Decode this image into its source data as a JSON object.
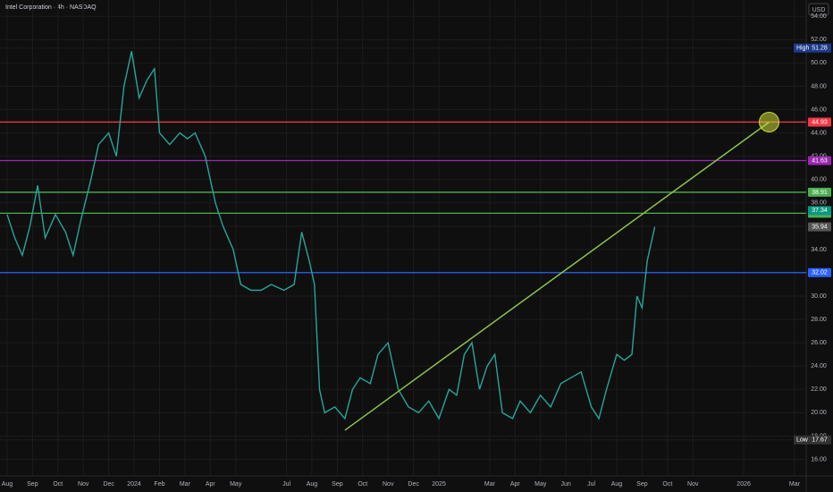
{
  "chart_data": {
    "type": "line",
    "title": "Intel Corporation · 4h · NASDAQ",
    "currency": "USD",
    "color": "#26a69a",
    "x": [
      0,
      0.3,
      0.6,
      0.9,
      1.2,
      1.5,
      1.9,
      2.3,
      2.6,
      2.9,
      3.3,
      3.6,
      4.0,
      4.3,
      4.6,
      4.9,
      5.2,
      5.5,
      5.8,
      6.0,
      6.4,
      6.8,
      7.1,
      7.4,
      7.8,
      8.2,
      8.5,
      8.9,
      9.2,
      9.6,
      10.0,
      10.4,
      10.9,
      11.3,
      11.6,
      11.9,
      12.1,
      12.3,
      12.5,
      12.9,
      13.3,
      13.6,
      13.9,
      14.3,
      14.6,
      15.0,
      15.4,
      15.8,
      16.2,
      16.6,
      17.0,
      17.4,
      17.7,
      18.0,
      18.3,
      18.6,
      18.9,
      19.2,
      19.5,
      19.9,
      20.2,
      20.6,
      21.0,
      21.4,
      21.8,
      22.2,
      22.6,
      23.0,
      23.3,
      23.6,
      24.0,
      24.3,
      24.6,
      24.8,
      25.0,
      25.2,
      25.5
    ],
    "values": [
      37,
      35,
      33.5,
      36,
      39.5,
      35,
      37,
      35.5,
      33.5,
      36.5,
      40,
      43,
      44,
      42,
      48,
      51,
      47,
      48.5,
      49.5,
      44,
      43,
      44,
      43.5,
      44,
      42,
      38,
      36,
      34,
      31,
      30.5,
      30.5,
      31,
      30.5,
      31,
      35.5,
      33,
      31,
      22,
      20,
      20.5,
      19.5,
      22,
      23,
      22.5,
      25,
      26,
      22,
      20.5,
      20,
      21,
      19.5,
      22,
      21.5,
      25,
      26,
      22,
      24,
      25,
      20,
      19.5,
      21,
      20,
      21.5,
      20.5,
      22.5,
      23,
      23.5,
      20.5,
      19.5,
      22,
      25,
      24.5,
      25,
      30,
      29,
      33,
      35.94
    ],
    "xlim": [
      -0.28,
      31.46
    ],
    "ylim": [
      13.2,
      55.4
    ],
    "xticks": [
      {
        "value": 0,
        "label": "Aug"
      },
      {
        "value": 1,
        "label": "Sep"
      },
      {
        "value": 2,
        "label": "Oct"
      },
      {
        "value": 3,
        "label": "Nov"
      },
      {
        "value": 4,
        "label": "Dec"
      },
      {
        "value": 5,
        "label": "2024"
      },
      {
        "value": 6,
        "label": "Feb"
      },
      {
        "value": 7,
        "label": "Mar"
      },
      {
        "value": 8,
        "label": "Apr"
      },
      {
        "value": 9,
        "label": "May"
      },
      {
        "value": 11,
        "label": "Jul"
      },
      {
        "value": 12,
        "label": "Aug"
      },
      {
        "value": 13,
        "label": "Sep"
      },
      {
        "value": 14,
        "label": "Oct"
      },
      {
        "value": 15,
        "label": "Nov"
      },
      {
        "value": 16,
        "label": "Dec"
      },
      {
        "value": 17,
        "label": "2025"
      },
      {
        "value": 19,
        "label": "Mar"
      },
      {
        "value": 20,
        "label": "Apr"
      },
      {
        "value": 21,
        "label": "May"
      },
      {
        "value": 22,
        "label": "Jun"
      },
      {
        "value": 23,
        "label": "Jul"
      },
      {
        "value": 24,
        "label": "Aug"
      },
      {
        "value": 25,
        "label": "Sep"
      },
      {
        "value": 26,
        "label": "Oct"
      },
      {
        "value": 27,
        "label": "Nov"
      },
      {
        "value": 29,
        "label": "2026"
      },
      {
        "value": 31,
        "label": "Mar"
      }
    ],
    "yticks": [
      {
        "value": 16,
        "label": "16.00"
      },
      {
        "value": 18,
        "label": "18.00"
      },
      {
        "value": 20,
        "label": "20.00"
      },
      {
        "value": 22,
        "label": "22.00"
      },
      {
        "value": 24,
        "label": "24.00"
      },
      {
        "value": 26,
        "label": "26.00"
      },
      {
        "value": 28,
        "label": "28.00"
      },
      {
        "value": 30,
        "label": "30.00"
      },
      {
        "value": 32,
        "label": "32.00"
      },
      {
        "value": 34,
        "label": "34.00"
      },
      {
        "value": 36,
        "label": "36.00"
      },
      {
        "value": 38,
        "label": "38.00"
      },
      {
        "value": 40,
        "label": "40.00"
      },
      {
        "value": 42,
        "label": "42.00"
      },
      {
        "value": 44,
        "label": "44.00"
      },
      {
        "value": 46,
        "label": "46.00"
      },
      {
        "value": 48,
        "label": "48.00"
      },
      {
        "value": 50,
        "label": "50.00"
      },
      {
        "value": 52,
        "label": "52.00"
      },
      {
        "value": 54,
        "label": "54.00"
      }
    ],
    "levels": [
      {
        "value": 44.93,
        "color": "#f23645"
      },
      {
        "value": 41.63,
        "color": "#9c27b0"
      },
      {
        "value": 38.91,
        "color": "#4caf50"
      },
      {
        "value": 37.11,
        "color": "#4caf50"
      },
      {
        "value": 32.02,
        "color": "#2962ff"
      }
    ],
    "price_tags": [
      {
        "value": 37.34,
        "color": "#089981"
      },
      {
        "value": 35.94,
        "color": "#555555"
      }
    ],
    "high": {
      "label": "High",
      "value": 51.28
    },
    "low": {
      "label": "Low",
      "value": 17.67
    },
    "trendline": {
      "x": [
        13.3,
        30
      ],
      "values": [
        18.5,
        44.93
      ],
      "color": "#8bc34a"
    }
  }
}
